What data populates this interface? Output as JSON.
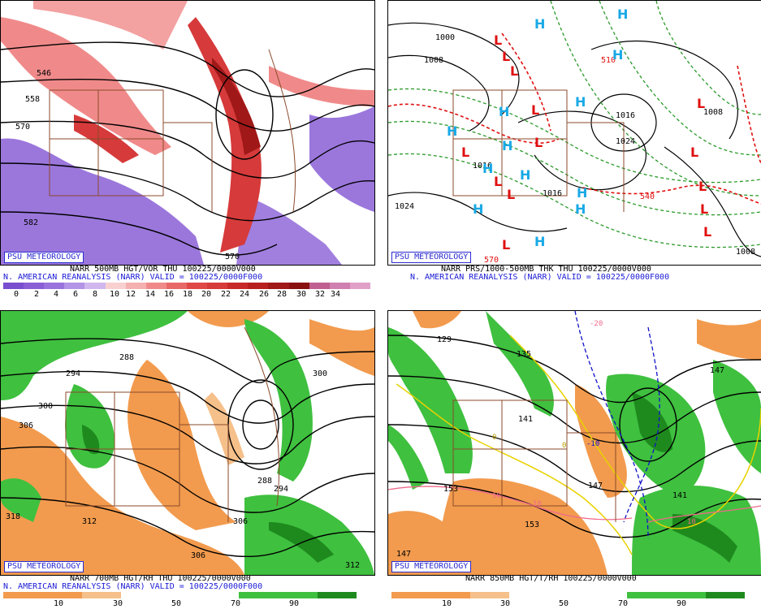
{
  "panels": [
    {
      "badge": "PSU METEOROLOGY",
      "caption1": "NARR 500MB HGT/VOR THU 100225/0000V000",
      "caption2": "N. AMERICAN REANALYSIS (NARR) VALID = 100225/0000F000",
      "labels": [
        "546",
        "558",
        "570",
        "582",
        "570"
      ],
      "colorbar_ticks": [
        "0",
        "2",
        "4",
        "6",
        "8",
        "10",
        "12",
        "14",
        "16",
        "18",
        "20",
        "22",
        "24",
        "26",
        "28",
        "30",
        "32",
        "34"
      ]
    },
    {
      "badge": "PSU METEOROLOGY",
      "caption1": "NARR PRS/1000-500MB THK THU 100225/0000V000",
      "caption2": "N. AMERICAN REANALYSIS (NARR) VALID = 100225/0000F000",
      "labels": [
        "1000",
        "1008",
        "1024",
        "1016",
        "1024",
        "1016",
        "1008",
        "1016",
        "1008",
        "510",
        "570",
        "540"
      ],
      "highs": [
        "H",
        "H",
        "H",
        "H",
        "H",
        "H",
        "H",
        "H",
        "H",
        "H",
        "H",
        "H",
        "H"
      ],
      "lows": [
        "L",
        "L",
        "L",
        "L",
        "L",
        "L",
        "L",
        "L",
        "L",
        "L",
        "L",
        "L",
        "L",
        "L"
      ]
    },
    {
      "badge": "PSU METEOROLOGY",
      "caption1": "NARR 700MB HGT/RH THU 100225/0000V000",
      "caption2": "N. AMERICAN REANALYSIS (NARR) VALID = 100225/0000F000",
      "labels": [
        "288",
        "294",
        "300",
        "306",
        "318",
        "312",
        "306",
        "306",
        "312",
        "288",
        "294",
        "300"
      ],
      "colorbar_ticks": [
        "10",
        "30",
        "50",
        "70",
        "90"
      ]
    },
    {
      "badge": "PSU METEOROLOGY",
      "caption1": "NARR 850MB HGT/T/RH 100225/0000V000",
      "labels": [
        "129",
        "135",
        "141",
        "147",
        "153",
        "153",
        "147",
        "141",
        "147"
      ],
      "temp_labels": [
        "-10",
        "10",
        "10",
        "10",
        "0",
        "0",
        "-20"
      ],
      "colorbar_ticks": [
        "10",
        "30",
        "50",
        "70",
        "90"
      ]
    }
  ],
  "colors": {
    "vort_purple": "#8a5fd6",
    "vort_pink": "#f08a8a",
    "vort_red": "#d63a3a",
    "vort_dark": "#a01818",
    "rh_orange": "#f29b4e",
    "rh_light_orange": "#f6c08a",
    "rh_green": "#3fc03f",
    "rh_dark_green": "#1e8a1e",
    "high_blue": "#19a9e6",
    "low_red": "#e01010",
    "thk_green": "#2a9a2a",
    "thk_red": "#e01010",
    "border_brown": "#8b4a2b",
    "isotherm_yellow": "#e8d200",
    "isotherm_blue": "#1010c8",
    "isotherm_pink": "#f06a8a"
  }
}
